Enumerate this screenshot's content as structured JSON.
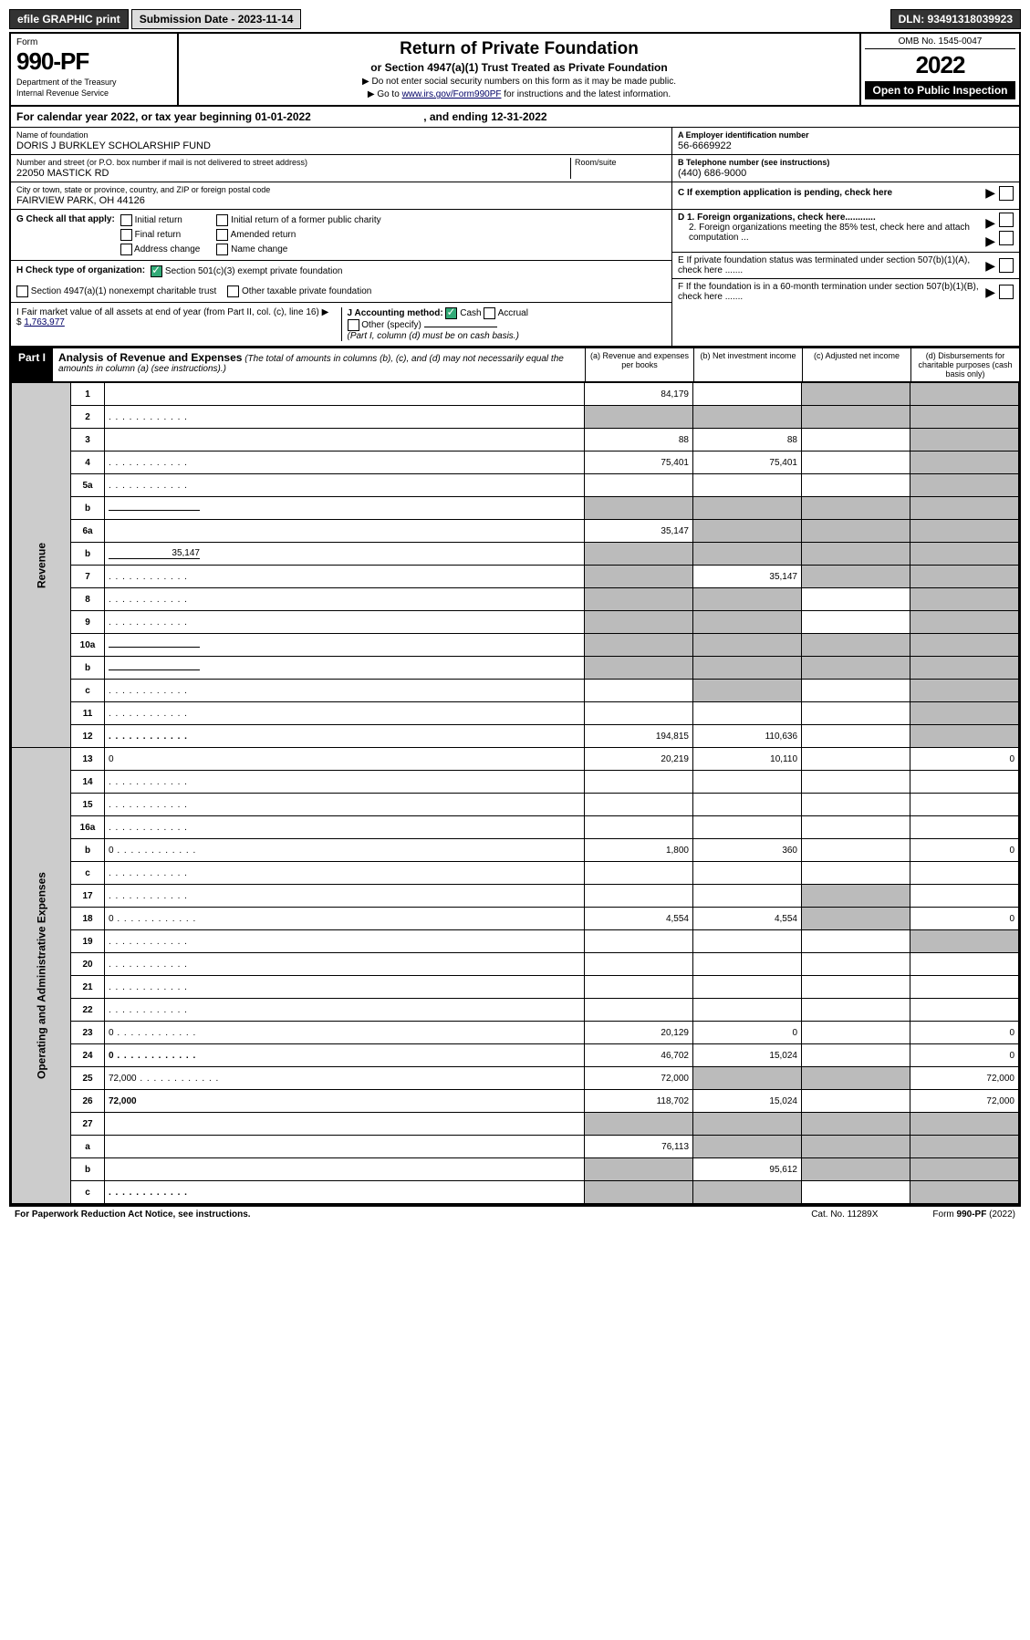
{
  "topbar": {
    "efile": "efile GRAPHIC print",
    "submission": "Submission Date - 2023-11-14",
    "dln": "DLN: 93491318039923"
  },
  "header": {
    "form_label": "Form",
    "form_number": "990-PF",
    "dept1": "Department of the Treasury",
    "dept2": "Internal Revenue Service",
    "title": "Return of Private Foundation",
    "subtitle": "or Section 4947(a)(1) Trust Treated as Private Foundation",
    "instr1": "▶ Do not enter social security numbers on this form as it may be made public.",
    "instr2_pre": "▶ Go to ",
    "instr2_link": "www.irs.gov/Form990PF",
    "instr2_post": " for instructions and the latest information.",
    "omb": "OMB No. 1545-0047",
    "year": "2022",
    "open": "Open to Public Inspection"
  },
  "calendar": {
    "text_pre": "For calendar year 2022, or tax year beginning ",
    "begin": "01-01-2022",
    "text_mid": ", and ending ",
    "end": "12-31-2022"
  },
  "entity": {
    "name_lbl": "Name of foundation",
    "name": "DORIS J BURKLEY SCHOLARSHIP FUND",
    "addr_lbl": "Number and street (or P.O. box number if mail is not delivered to street address)",
    "addr": "22050 MASTICK RD",
    "room_lbl": "Room/suite",
    "city_lbl": "City or town, state or province, country, and ZIP or foreign postal code",
    "city": "FAIRVIEW PARK, OH  44126",
    "ein_lbl": "A Employer identification number",
    "ein": "56-6669922",
    "phone_lbl": "B Telephone number (see instructions)",
    "phone": "(440) 686-9000",
    "c_lbl": "C If exemption application is pending, check here"
  },
  "checks": {
    "g_lbl": "G Check all that apply:",
    "g_opts": [
      "Initial return",
      "Final return",
      "Address change",
      "Initial return of a former public charity",
      "Amended return",
      "Name change"
    ],
    "h_lbl": "H Check type of organization:",
    "h_opt1": "Section 501(c)(3) exempt private foundation",
    "h_opt2": "Section 4947(a)(1) nonexempt charitable trust",
    "h_opt3": "Other taxable private foundation",
    "i_lbl": "I Fair market value of all assets at end of year (from Part II, col. (c), line 16) ▶ $",
    "i_val": "1,763,977",
    "j_lbl": "J Accounting method:",
    "j_cash": "Cash",
    "j_accrual": "Accrual",
    "j_other": "Other (specify)",
    "j_note": "(Part I, column (d) must be on cash basis.)",
    "d1": "D 1. Foreign organizations, check here............",
    "d2": "2. Foreign organizations meeting the 85% test, check here and attach computation ...",
    "e_lbl": "E  If private foundation status was terminated under section 507(b)(1)(A), check here .......",
    "f_lbl": "F  If the foundation is in a 60-month termination under section 507(b)(1)(B), check here ......."
  },
  "part1": {
    "label": "Part I",
    "title": "Analysis of Revenue and Expenses",
    "note": "(The total of amounts in columns (b), (c), and (d) may not necessarily equal the amounts in column (a) (see instructions).)",
    "col_a": "(a)   Revenue and expenses per books",
    "col_b": "(b)   Net investment income",
    "col_c": "(c)   Adjusted net income",
    "col_d": "(d)   Disbursements for charitable purposes (cash basis only)"
  },
  "sections": {
    "revenue": "Revenue",
    "expenses": "Operating and Administrative Expenses"
  },
  "rows": [
    {
      "n": "1",
      "d": "",
      "a": "84,179",
      "b": "",
      "c": "",
      "shade_c": true,
      "shade_d": true
    },
    {
      "n": "2",
      "d": "",
      "a": "",
      "b": "",
      "c": "",
      "shade_a": true,
      "shade_b": true,
      "shade_c": true,
      "shade_d": true,
      "dots": true
    },
    {
      "n": "3",
      "d": "",
      "a": "88",
      "b": "88",
      "c": "",
      "shade_d": true
    },
    {
      "n": "4",
      "d": "",
      "a": "75,401",
      "b": "75,401",
      "c": "",
      "dots": true,
      "shade_d": true
    },
    {
      "n": "5a",
      "d": "",
      "a": "",
      "b": "",
      "c": "",
      "dots": true,
      "shade_d": true
    },
    {
      "n": "b",
      "d": "",
      "a": "",
      "b": "",
      "c": "",
      "shade_a": true,
      "shade_b": true,
      "shade_c": true,
      "shade_d": true,
      "inline": true
    },
    {
      "n": "6a",
      "d": "",
      "a": "35,147",
      "b": "",
      "c": "",
      "shade_b": true,
      "shade_c": true,
      "shade_d": true
    },
    {
      "n": "b",
      "d": "",
      "a": "",
      "b": "",
      "c": "",
      "shade_a": true,
      "shade_b": true,
      "shade_c": true,
      "shade_d": true,
      "inline": true,
      "inline_val": "35,147"
    },
    {
      "n": "7",
      "d": "",
      "a": "",
      "b": "35,147",
      "c": "",
      "dots": true,
      "shade_a": true,
      "shade_c": true,
      "shade_d": true
    },
    {
      "n": "8",
      "d": "",
      "a": "",
      "b": "",
      "c": "",
      "dots": true,
      "shade_a": true,
      "shade_b": true,
      "shade_d": true
    },
    {
      "n": "9",
      "d": "",
      "a": "",
      "b": "",
      "c": "",
      "dots": true,
      "shade_a": true,
      "shade_b": true,
      "shade_d": true
    },
    {
      "n": "10a",
      "d": "",
      "a": "",
      "b": "",
      "c": "",
      "inline": true,
      "shade_a": true,
      "shade_b": true,
      "shade_c": true,
      "shade_d": true
    },
    {
      "n": "b",
      "d": "",
      "a": "",
      "b": "",
      "c": "",
      "dots": true,
      "inline": true,
      "shade_a": true,
      "shade_b": true,
      "shade_c": true,
      "shade_d": true
    },
    {
      "n": "c",
      "d": "",
      "a": "",
      "b": "",
      "c": "",
      "dots": true,
      "shade_b": true,
      "shade_d": true
    },
    {
      "n": "11",
      "d": "",
      "a": "",
      "b": "",
      "c": "",
      "dots": true,
      "shade_d": true
    },
    {
      "n": "12",
      "d": "",
      "a": "194,815",
      "b": "110,636",
      "c": "",
      "dots": true,
      "bold": true,
      "shade_d": true
    },
    {
      "n": "13",
      "d": "0",
      "a": "20,219",
      "b": "10,110",
      "c": ""
    },
    {
      "n": "14",
      "d": "",
      "a": "",
      "b": "",
      "c": "",
      "dots": true
    },
    {
      "n": "15",
      "d": "",
      "a": "",
      "b": "",
      "c": "",
      "dots": true
    },
    {
      "n": "16a",
      "d": "",
      "a": "",
      "b": "",
      "c": "",
      "dots": true
    },
    {
      "n": "b",
      "d": "0",
      "a": "1,800",
      "b": "360",
      "c": "",
      "dots": true
    },
    {
      "n": "c",
      "d": "",
      "a": "",
      "b": "",
      "c": "",
      "dots": true
    },
    {
      "n": "17",
      "d": "",
      "a": "",
      "b": "",
      "c": "",
      "dots": true,
      "shade_c": true
    },
    {
      "n": "18",
      "d": "0",
      "a": "4,554",
      "b": "4,554",
      "c": "",
      "dots": true,
      "shade_c": true
    },
    {
      "n": "19",
      "d": "",
      "a": "",
      "b": "",
      "c": "",
      "dots": true,
      "shade_d": true
    },
    {
      "n": "20",
      "d": "",
      "a": "",
      "b": "",
      "c": "",
      "dots": true
    },
    {
      "n": "21",
      "d": "",
      "a": "",
      "b": "",
      "c": "",
      "dots": true
    },
    {
      "n": "22",
      "d": "",
      "a": "",
      "b": "",
      "c": "",
      "dots": true
    },
    {
      "n": "23",
      "d": "0",
      "a": "20,129",
      "b": "0",
      "c": "",
      "dots": true
    },
    {
      "n": "24",
      "d": "0",
      "a": "46,702",
      "b": "15,024",
      "c": "",
      "dots": true,
      "bold": true
    },
    {
      "n": "25",
      "d": "72,000",
      "a": "72,000",
      "b": "",
      "c": "",
      "dots": true,
      "shade_b": true,
      "shade_c": true
    },
    {
      "n": "26",
      "d": "72,000",
      "a": "118,702",
      "b": "15,024",
      "c": "",
      "bold": true
    },
    {
      "n": "27",
      "d": "",
      "a": "",
      "b": "",
      "c": "",
      "shade_a": true,
      "shade_b": true,
      "shade_c": true,
      "shade_d": true
    },
    {
      "n": "a",
      "d": "",
      "a": "76,113",
      "b": "",
      "c": "",
      "bold": true,
      "shade_b": true,
      "shade_c": true,
      "shade_d": true
    },
    {
      "n": "b",
      "d": "",
      "a": "",
      "b": "95,612",
      "c": "",
      "bold": true,
      "shade_a": true,
      "shade_c": true,
      "shade_d": true
    },
    {
      "n": "c",
      "d": "",
      "a": "",
      "b": "",
      "c": "",
      "dots": true,
      "bold": true,
      "shade_a": true,
      "shade_b": true,
      "shade_d": true
    }
  ],
  "footer": {
    "left": "For Paperwork Reduction Act Notice, see instructions.",
    "mid": "Cat. No. 11289X",
    "right": "Form 990-PF (2022)"
  }
}
